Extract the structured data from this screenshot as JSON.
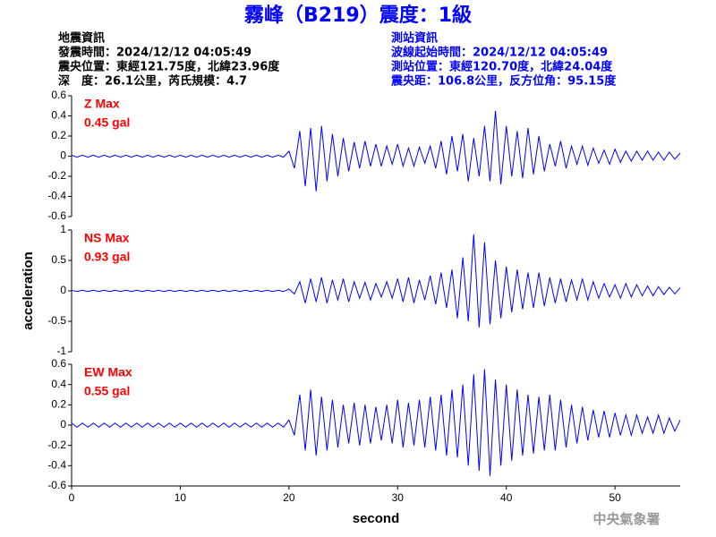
{
  "header": {
    "title": "霧峰（B219）震度：1級",
    "left": [
      "地震資訊",
      "發震時間：2024/12/12 04:05:49",
      "震央位置：東經121.75度，北緯23.96度",
      "深　度：26.1公里，芮氏規模：4.7"
    ],
    "right": [
      "測站資訊",
      "波線起始時間：2024/12/12 04:05:49",
      "測站位置：東經120.70度，北緯24.04度",
      "震央距：106.8公里，反方位角：95.15度"
    ],
    "logo": "中央氣象署"
  },
  "chart_data": [
    {
      "type": "line",
      "annotations": [
        "Z Max",
        "0.45 gal"
      ],
      "annotation_color": "#ff0000",
      "xlim": [
        0,
        56
      ],
      "ylim": [
        -0.6,
        0.6
      ],
      "yticks": [
        0.6,
        0.4,
        0.2,
        0,
        -0.2,
        -0.4,
        -0.6
      ],
      "x": [
        0,
        0.5,
        1,
        1.5,
        2,
        2.5,
        3,
        3.5,
        4,
        4.5,
        5,
        5.5,
        6,
        6.5,
        7,
        7.5,
        8,
        8.5,
        9,
        9.5,
        10,
        10.5,
        11,
        11.5,
        12,
        12.5,
        13,
        13.5,
        14,
        14.5,
        15,
        15.5,
        16,
        16.5,
        17,
        17.5,
        18,
        18.5,
        19,
        19.5,
        20,
        20.5,
        21,
        21.5,
        22,
        22.5,
        23,
        23.5,
        24,
        24.5,
        25,
        25.5,
        26,
        26.5,
        27,
        27.5,
        28,
        28.5,
        29,
        29.5,
        30,
        30.5,
        31,
        31.5,
        32,
        32.5,
        33,
        33.5,
        34,
        34.5,
        35,
        35.5,
        36,
        36.5,
        37,
        37.5,
        38,
        38.5,
        39,
        39.5,
        40,
        40.5,
        41,
        41.5,
        42,
        42.5,
        43,
        43.5,
        44,
        44.5,
        45,
        45.5,
        46,
        46.5,
        47,
        47.5,
        48,
        48.5,
        49,
        49.5,
        50,
        50.5,
        51,
        51.5,
        52,
        52.5,
        53,
        53.5,
        54,
        54.5,
        55,
        55.5,
        56
      ],
      "series": [
        {
          "color": "#0000ff",
          "values": [
            0.01,
            -0.01,
            0.01,
            -0.01,
            0.01,
            -0.01,
            0.01,
            -0.01,
            0.01,
            -0.01,
            0.01,
            -0.01,
            0.01,
            -0.01,
            0.01,
            -0.01,
            0.01,
            -0.01,
            0.01,
            -0.01,
            0.01,
            -0.01,
            0.01,
            -0.01,
            0.01,
            -0.01,
            0.01,
            -0.01,
            0.01,
            -0.01,
            0.01,
            -0.01,
            0.01,
            -0.01,
            0.01,
            -0.01,
            0.01,
            -0.01,
            0.01,
            -0.01,
            0.05,
            -0.12,
            0.25,
            -0.3,
            0.28,
            -0.35,
            0.3,
            -0.25,
            0.22,
            -0.2,
            0.18,
            -0.15,
            0.14,
            -0.12,
            0.15,
            -0.1,
            0.12,
            -0.1,
            0.1,
            -0.08,
            0.12,
            -0.1,
            0.08,
            -0.1,
            0.09,
            -0.07,
            0.1,
            -0.12,
            0.15,
            -0.18,
            0.2,
            -0.15,
            0.22,
            -0.25,
            0.18,
            -0.2,
            0.3,
            -0.25,
            0.45,
            -0.28,
            0.3,
            -0.2,
            0.25,
            -0.22,
            0.28,
            -0.18,
            0.2,
            -0.15,
            0.12,
            -0.1,
            0.15,
            -0.12,
            0.1,
            -0.08,
            0.1,
            -0.09,
            0.08,
            -0.07,
            0.06,
            -0.08,
            0.07,
            -0.06,
            0.05,
            -0.05,
            0.05,
            -0.04,
            0.05,
            -0.04,
            0.04,
            -0.04,
            0.04,
            -0.03,
            0.03
          ]
        }
      ]
    },
    {
      "type": "line",
      "annotations": [
        "NS Max",
        "0.93 gal"
      ],
      "annotation_color": "#ff0000",
      "ylabel": "acceleration",
      "xlim": [
        0,
        56
      ],
      "ylim": [
        -1,
        1
      ],
      "yticks": [
        1,
        0.5,
        0,
        -0.5,
        -1
      ],
      "x": [
        0,
        0.5,
        1,
        1.5,
        2,
        2.5,
        3,
        3.5,
        4,
        4.5,
        5,
        5.5,
        6,
        6.5,
        7,
        7.5,
        8,
        8.5,
        9,
        9.5,
        10,
        10.5,
        11,
        11.5,
        12,
        12.5,
        13,
        13.5,
        14,
        14.5,
        15,
        15.5,
        16,
        16.5,
        17,
        17.5,
        18,
        18.5,
        19,
        19.5,
        20,
        20.5,
        21,
        21.5,
        22,
        22.5,
        23,
        23.5,
        24,
        24.5,
        25,
        25.5,
        26,
        26.5,
        27,
        27.5,
        28,
        28.5,
        29,
        29.5,
        30,
        30.5,
        31,
        31.5,
        32,
        32.5,
        33,
        33.5,
        34,
        34.5,
        35,
        35.5,
        36,
        36.5,
        37,
        37.5,
        38,
        38.5,
        39,
        39.5,
        40,
        40.5,
        41,
        41.5,
        42,
        42.5,
        43,
        43.5,
        44,
        44.5,
        45,
        45.5,
        46,
        46.5,
        47,
        47.5,
        48,
        48.5,
        49,
        49.5,
        50,
        50.5,
        51,
        51.5,
        52,
        52.5,
        53,
        53.5,
        54,
        54.5,
        55,
        55.5,
        56
      ],
      "series": [
        {
          "color": "#0000ff",
          "values": [
            0.01,
            -0.01,
            0.01,
            -0.01,
            0.01,
            -0.01,
            0.01,
            -0.01,
            0.01,
            -0.01,
            0.01,
            -0.01,
            0.01,
            -0.01,
            0.01,
            -0.01,
            0.01,
            -0.01,
            0.01,
            -0.01,
            0.01,
            -0.01,
            0.01,
            -0.01,
            0.01,
            -0.01,
            0.01,
            -0.01,
            0.01,
            -0.01,
            0.01,
            -0.01,
            0.01,
            -0.01,
            0.01,
            -0.01,
            0.01,
            -0.01,
            0.01,
            -0.01,
            0.03,
            -0.05,
            0.15,
            -0.2,
            0.2,
            -0.18,
            0.22,
            -0.2,
            0.18,
            -0.15,
            0.2,
            -0.18,
            0.15,
            -0.12,
            0.14,
            -0.15,
            0.12,
            -0.1,
            0.15,
            -0.12,
            0.2,
            -0.18,
            0.22,
            -0.2,
            0.18,
            -0.15,
            0.25,
            -0.22,
            0.3,
            -0.28,
            0.35,
            -0.45,
            0.55,
            -0.5,
            0.93,
            -0.6,
            0.8,
            -0.55,
            0.5,
            -0.45,
            0.4,
            -0.35,
            0.35,
            -0.3,
            0.3,
            -0.28,
            0.3,
            -0.25,
            0.22,
            -0.2,
            0.2,
            -0.18,
            0.18,
            -0.15,
            0.2,
            -0.15,
            0.15,
            -0.12,
            0.12,
            -0.1,
            0.1,
            -0.12,
            0.12,
            -0.1,
            0.1,
            -0.08,
            0.08,
            -0.08,
            0.07,
            -0.06,
            0.06,
            -0.05,
            0.05
          ]
        }
      ]
    },
    {
      "type": "line",
      "annotations": [
        "EW Max",
        "0.55 gal"
      ],
      "annotation_color": "#ff0000",
      "xlabel": "second",
      "xlim": [
        0,
        56
      ],
      "xticks": [
        0,
        10,
        20,
        30,
        40,
        50
      ],
      "ylim": [
        -0.6,
        0.6
      ],
      "yticks": [
        0.6,
        0.4,
        0.2,
        0,
        -0.2,
        -0.4,
        -0.6
      ],
      "x": [
        0,
        0.5,
        1,
        1.5,
        2,
        2.5,
        3,
        3.5,
        4,
        4.5,
        5,
        5.5,
        6,
        6.5,
        7,
        7.5,
        8,
        8.5,
        9,
        9.5,
        10,
        10.5,
        11,
        11.5,
        12,
        12.5,
        13,
        13.5,
        14,
        14.5,
        15,
        15.5,
        16,
        16.5,
        17,
        17.5,
        18,
        18.5,
        19,
        19.5,
        20,
        20.5,
        21,
        21.5,
        22,
        22.5,
        23,
        23.5,
        24,
        24.5,
        25,
        25.5,
        26,
        26.5,
        27,
        27.5,
        28,
        28.5,
        29,
        29.5,
        30,
        30.5,
        31,
        31.5,
        32,
        32.5,
        33,
        33.5,
        34,
        34.5,
        35,
        35.5,
        36,
        36.5,
        37,
        37.5,
        38,
        38.5,
        39,
        39.5,
        40,
        40.5,
        41,
        41.5,
        42,
        42.5,
        43,
        43.5,
        44,
        44.5,
        45,
        45.5,
        46,
        46.5,
        47,
        47.5,
        48,
        48.5,
        49,
        49.5,
        50,
        50.5,
        51,
        51.5,
        52,
        52.5,
        53,
        53.5,
        54,
        54.5,
        55,
        55.5,
        56
      ],
      "series": [
        {
          "color": "#0000ff",
          "values": [
            0.02,
            -0.02,
            0.02,
            -0.02,
            0.02,
            -0.02,
            0.02,
            -0.02,
            0.02,
            -0.02,
            0.02,
            -0.02,
            0.02,
            -0.02,
            0.02,
            -0.02,
            0.02,
            -0.02,
            0.02,
            -0.02,
            0.02,
            -0.02,
            0.02,
            -0.02,
            0.02,
            -0.02,
            0.02,
            -0.02,
            0.02,
            -0.02,
            0.02,
            -0.02,
            0.02,
            -0.02,
            0.02,
            -0.02,
            0.02,
            -0.02,
            0.02,
            -0.02,
            0.05,
            -0.1,
            0.3,
            -0.25,
            0.35,
            -0.3,
            0.28,
            -0.25,
            0.25,
            -0.22,
            0.2,
            -0.18,
            0.22,
            -0.2,
            0.2,
            -0.18,
            0.18,
            -0.15,
            0.2,
            -0.18,
            0.25,
            -0.22,
            0.22,
            -0.2,
            0.25,
            -0.22,
            0.28,
            -0.25,
            0.3,
            -0.3,
            0.35,
            -0.32,
            0.4,
            -0.4,
            0.5,
            -0.45,
            0.55,
            -0.5,
            0.45,
            -0.4,
            0.4,
            -0.35,
            0.35,
            -0.3,
            0.3,
            -0.28,
            0.28,
            -0.25,
            0.3,
            -0.25,
            0.25,
            -0.22,
            0.2,
            -0.18,
            0.18,
            -0.15,
            0.15,
            -0.12,
            0.14,
            -0.12,
            0.12,
            -0.1,
            0.1,
            -0.1,
            0.1,
            -0.08,
            0.08,
            -0.08,
            0.1,
            -0.08,
            0.07,
            -0.06,
            0.05
          ]
        }
      ]
    }
  ]
}
